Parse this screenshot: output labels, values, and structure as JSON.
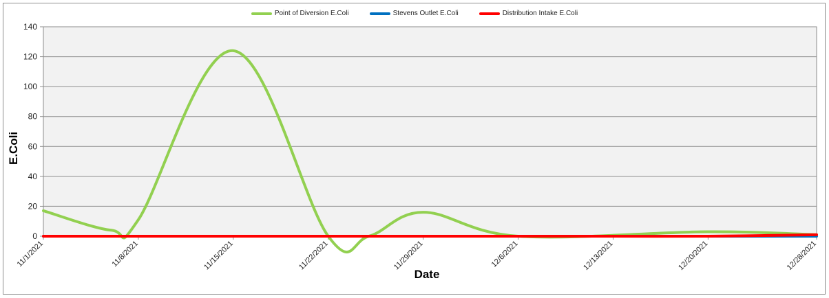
{
  "chart_data": {
    "type": "line",
    "title": "",
    "xlabel": "Date",
    "ylabel": "E.Coli",
    "ylim": [
      0,
      140
    ],
    "yticks": [
      0,
      20,
      40,
      60,
      80,
      100,
      120,
      140
    ],
    "xlim": [
      "11/1/2021",
      "12/28/2021"
    ],
    "xtick_labels": [
      "11/1/2021",
      "11/8/2021",
      "11/15/2021",
      "11/22/2021",
      "11/29/2021",
      "12/6/2021",
      "12/13/2021",
      "12/20/2021",
      "12/28/2021"
    ],
    "grid": true,
    "legend_position": "top",
    "series": [
      {
        "name": "Point of Diversion E.Coli",
        "color": "#92d050",
        "x": [
          "11/1/2021",
          "11/6/2021",
          "11/8/2021",
          "11/15/2021",
          "11/22/2021",
          "11/25/2021",
          "11/29/2021",
          "12/6/2021",
          "12/20/2021",
          "12/28/2021"
        ],
        "y": [
          17,
          4,
          11,
          124,
          0,
          0,
          16,
          0,
          3,
          1
        ]
      },
      {
        "name": "Stevens Outlet E.Coli",
        "color": "#0070c0",
        "x": [
          "11/1/2021",
          "12/28/2021"
        ],
        "y": [
          0,
          0
        ]
      },
      {
        "name": "Distribution Intake E.Coli",
        "color": "#ff0000",
        "x": [
          "11/1/2021",
          "11/8/2021",
          "11/15/2021",
          "11/22/2021",
          "11/29/2021",
          "12/6/2021",
          "12/13/2021",
          "12/20/2021",
          "12/28/2021"
        ],
        "y": [
          0,
          0,
          0,
          0,
          0,
          0,
          0,
          0,
          1
        ]
      }
    ]
  }
}
